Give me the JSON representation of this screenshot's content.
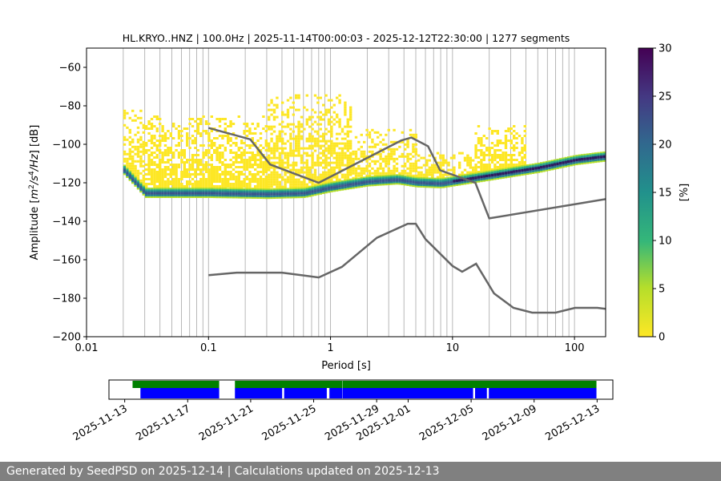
{
  "chart_data": {
    "type": "heatmap",
    "title": "HL.KRYO..HNZ | 100.0Hz | 2025-11-14T00:00:03 - 2025-12-12T22:30:00 | 1277 segments",
    "xlabel": "Period [s]",
    "ylabel": "Amplitude [m²/s⁴/Hz] [dB]",
    "xscale": "log",
    "xlim": [
      0.01,
      180
    ],
    "ylim": [
      -200,
      -50
    ],
    "xticks": [
      0.01,
      0.1,
      1,
      10,
      100
    ],
    "xtick_labels": [
      "0.01",
      "0.1",
      "1",
      "10",
      "100"
    ],
    "yticks": [
      -60,
      -80,
      -100,
      -120,
      -140,
      -160,
      -180,
      -200
    ],
    "colorbar": {
      "label": "[%]",
      "range": [
        0,
        30
      ],
      "ticks": [
        0,
        5,
        10,
        15,
        20,
        25,
        30
      ],
      "colormap": "viridis_r"
    },
    "grid": "vertical lines at log-spaced periods",
    "series": [
      {
        "role": "upper noise model",
        "color": "#666666",
        "x": [
          0.1,
          0.22,
          0.32,
          0.8,
          3.8,
          4.6,
          6.3,
          7.9,
          15.4,
          20,
          180
        ],
        "y": [
          -91.5,
          -97.4,
          -110.5,
          -120,
          -98,
          -96.5,
          -101,
          -113.5,
          -120,
          -138.5,
          -128.5
        ]
      },
      {
        "role": "lower noise model",
        "color": "#666666",
        "x": [
          0.1,
          0.17,
          0.4,
          0.8,
          1.24,
          2.4,
          4.3,
          5,
          6,
          10,
          12,
          15.6,
          21.9,
          31.6,
          45,
          70,
          101,
          154,
          180
        ],
        "y": [
          -168,
          -166.7,
          -166.7,
          -169.2,
          -163.7,
          -148.6,
          -141.3,
          -141.3,
          -149.3,
          -163.2,
          -166.2,
          -162.1,
          -177.5,
          -185,
          -187.5,
          -187.5,
          -185,
          -185,
          -185.5
        ]
      }
    ],
    "density": {
      "floor_x": [
        0.018,
        0.03,
        0.1,
        0.3,
        0.6,
        1,
        2,
        3.5,
        5,
        8,
        10,
        20,
        50,
        100,
        180
      ],
      "floor_y": [
        -110,
        -125,
        -125,
        -125.5,
        -125,
        -122,
        -119,
        -118,
        -119.5,
        -120,
        -119,
        -116,
        -112,
        -108,
        -106
      ]
    },
    "data_availability": {
      "dates": [
        "2025-11-13",
        "2025-11-17",
        "2025-11-21",
        "2025-11-25",
        "2025-11-29",
        "2025-12-01",
        "2025-12-05",
        "2025-12-09",
        "2025-12-13"
      ],
      "xlim": [
        "2025-11-12",
        "2025-12-14"
      ],
      "green_segments": [
        [
          "2025-11-13T12:00",
          "2025-11-19"
        ],
        [
          "2025-11-20",
          "2025-11-26T20:00"
        ],
        [
          "2025-11-26T20:30",
          "2025-12-12T23:00"
        ]
      ],
      "blue_segments": [
        [
          "2025-11-14",
          "2025-11-19"
        ],
        [
          "2025-11-20",
          "2025-11-23T00:00"
        ],
        [
          "2025-11-23T03:00",
          "2025-11-25T20:00"
        ],
        [
          "2025-11-26T00:00",
          "2025-11-26T20:00"
        ],
        [
          "2025-11-26T20:30",
          "2025-12-05T03:00"
        ],
        [
          "2025-12-05T06:00",
          "2025-12-06T00:00"
        ],
        [
          "2025-12-06T03:00",
          "2025-12-12T23:00"
        ]
      ],
      "colors": {
        "green": "#008000",
        "blue": "#0000ff"
      }
    }
  },
  "footer": {
    "text": "Generated by SeedPSD on 2025-12-14 | Calculations updated on 2025-12-13"
  }
}
